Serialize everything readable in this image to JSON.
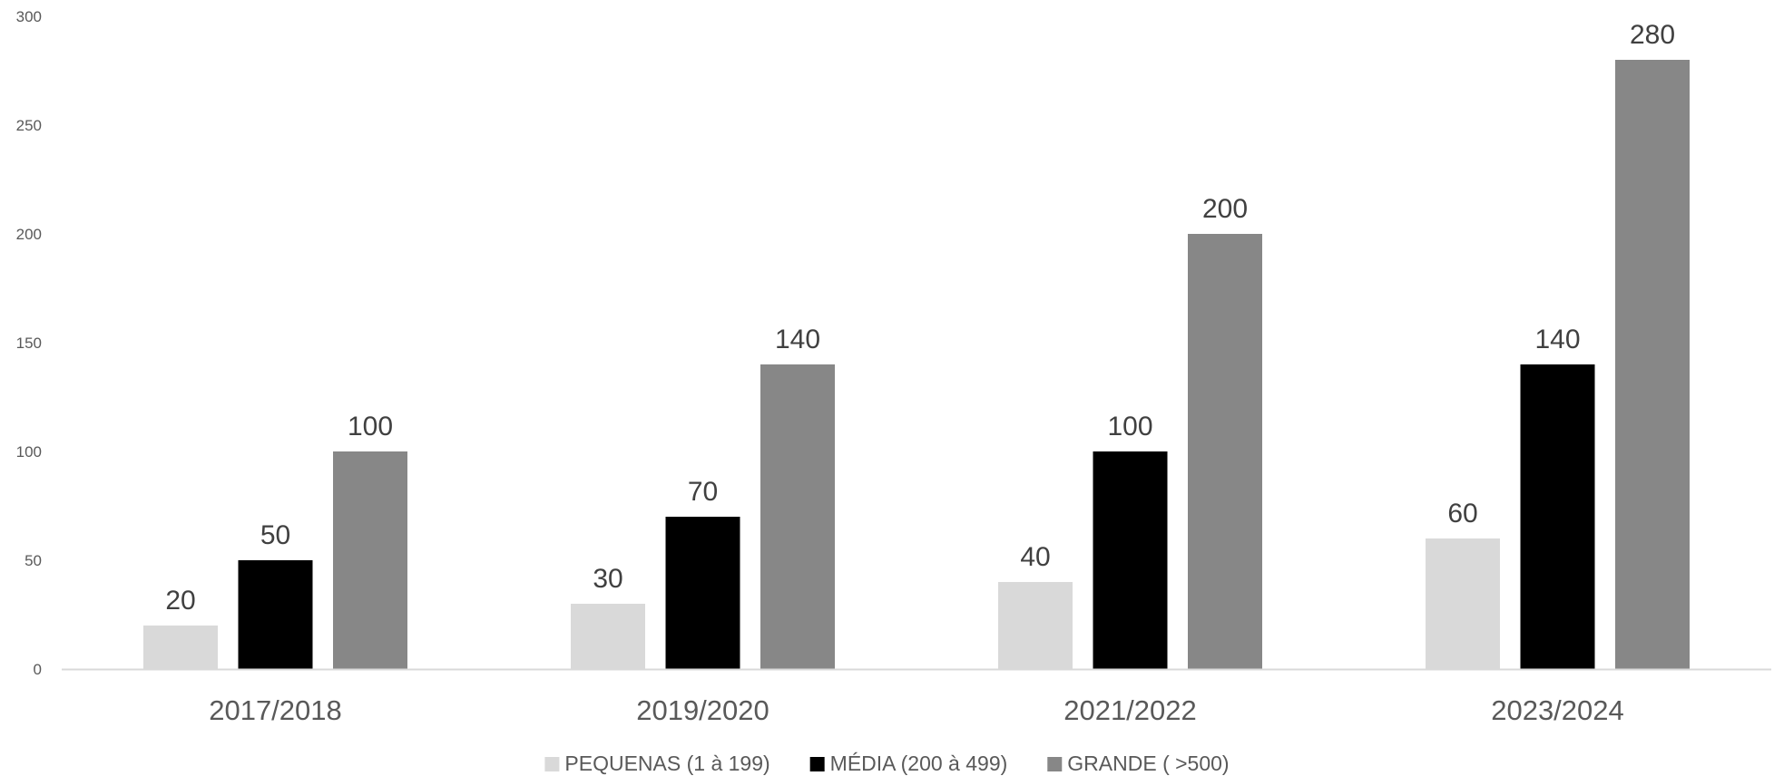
{
  "chart_data": {
    "type": "bar",
    "categories": [
      "2017/2018",
      "2019/2020",
      "2021/2022",
      "2023/2024"
    ],
    "series": [
      {
        "name": "PEQUENAS (1 à 199)",
        "color": "#d9d9d9",
        "values": [
          20,
          30,
          40,
          60
        ]
      },
      {
        "name": "MÉDIA (200 à 499)",
        "color": "#000000",
        "values": [
          50,
          70,
          100,
          140
        ]
      },
      {
        "name": "GRANDE ( >500)",
        "color": "#878787",
        "values": [
          100,
          140,
          200,
          280
        ]
      }
    ],
    "ylim": [
      0,
      300
    ],
    "yticks": [
      "0",
      "50",
      "100",
      "150",
      "200",
      "250",
      "300"
    ],
    "grid": false,
    "legend_position": "bottom",
    "data_labels": true,
    "axis_color": "#d9d9d9"
  }
}
